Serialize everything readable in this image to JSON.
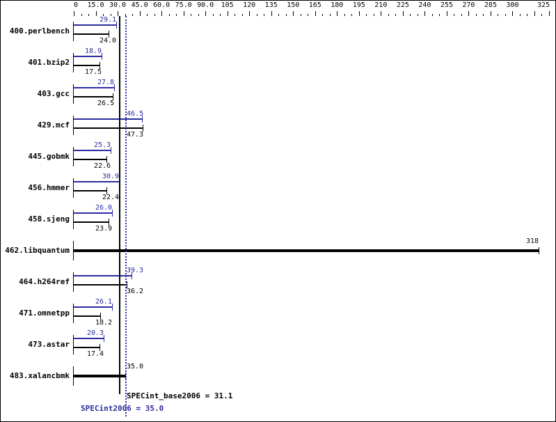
{
  "chart_data": {
    "type": "bar",
    "orientation": "horizontal",
    "title": "",
    "xlabel": "",
    "ylabel": "",
    "xlim": [
      0,
      325
    ],
    "x_ticks": [
      "0",
      "15.0",
      "30.0",
      "45.0",
      "60.0",
      "75.0",
      "90.0",
      "105",
      "120",
      "135",
      "150",
      "165",
      "180",
      "195",
      "210",
      "225",
      "240",
      "255",
      "270",
      "285",
      "300",
      "325"
    ],
    "categories": [
      "400.perlbench",
      "401.bzip2",
      "403.gcc",
      "429.mcf",
      "445.gobmk",
      "456.hmmer",
      "458.sjeng",
      "462.libquantum",
      "464.h264ref",
      "471.omnetpp",
      "473.astar",
      "483.xalancbmk"
    ],
    "series": [
      {
        "name": "SPECint2006 (peak)",
        "color": "#2b2ba0",
        "values": [
          29.1,
          18.9,
          27.8,
          46.5,
          25.3,
          30.9,
          26.0,
          318,
          39.3,
          26.1,
          20.3,
          35.0
        ]
      },
      {
        "name": "SPECint_base2006 (base)",
        "color": "#000000",
        "values": [
          24.0,
          17.5,
          26.5,
          47.3,
          22.6,
          22.4,
          23.9,
          318,
          36.2,
          18.2,
          17.4,
          35.0
        ]
      }
    ],
    "annotations": {
      "base_summary": "SPECint_base2006 = 31.1",
      "peak_summary": "SPECint2006 = 35.0",
      "base_geomean": 31.1,
      "peak_geomean": 35.0
    }
  },
  "labels": {
    "combined_318": "318",
    "combined_35": "35.0"
  }
}
